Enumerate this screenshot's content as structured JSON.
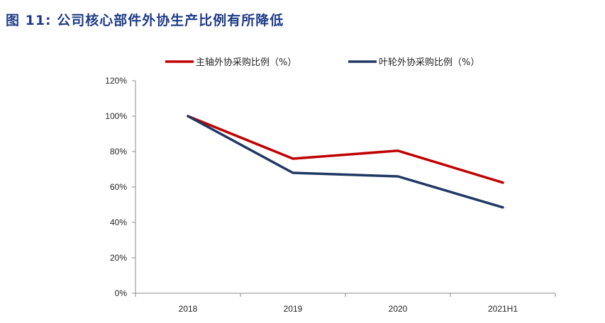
{
  "figure": {
    "number_label": "图 11:",
    "title": "公司核心部件外协生产比例有所降低"
  },
  "chart_data": {
    "type": "line",
    "categories": [
      "2018",
      "2019",
      "2020",
      "2021H1"
    ],
    "series": [
      {
        "name": "主轴外协采购比例（%）",
        "color": "#c00000",
        "values": [
          100,
          76,
          80.5,
          62.5
        ]
      },
      {
        "name": "叶轮外协采购比例（%）",
        "color": "#203864",
        "values": [
          100,
          68,
          66,
          48.5
        ]
      }
    ],
    "y_ticks": [
      "0%",
      "20%",
      "40%",
      "60%",
      "80%",
      "100%",
      "120%"
    ],
    "ylim": [
      0,
      120
    ],
    "xlabel": "",
    "ylabel": "",
    "grid": false,
    "legend_position": "top"
  }
}
